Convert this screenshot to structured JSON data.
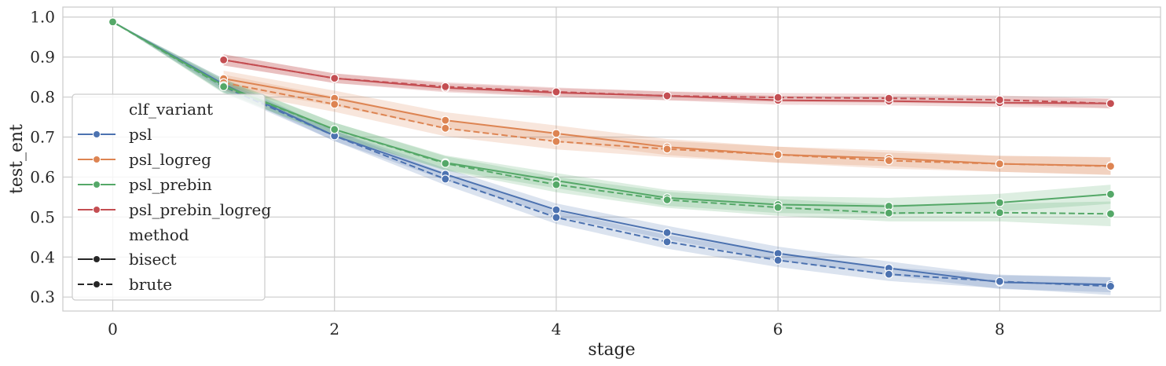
{
  "chart_data": {
    "type": "line",
    "title": "",
    "xlabel": "stage",
    "ylabel": "test_ent",
    "xlim": [
      -0.45,
      9.45
    ],
    "ylim": [
      0.265,
      1.025
    ],
    "xticks": [
      0,
      2,
      4,
      6,
      8
    ],
    "yticks": [
      0.3,
      0.4,
      0.5,
      0.6,
      0.7,
      0.8,
      0.9,
      1.0
    ],
    "xtick_labels": [
      "0",
      "2",
      "4",
      "6",
      "8"
    ],
    "ytick_labels": [
      "0.3",
      "0.4",
      "0.5",
      "0.6",
      "0.7",
      "0.8",
      "0.9",
      "1.0"
    ],
    "grid": true,
    "legend": {
      "placement": "center-left",
      "hue_title": "clf_variant",
      "style_title": "method",
      "hue_entries": [
        "psl",
        "psl_logreg",
        "psl_prebin",
        "psl_prebin_logreg"
      ],
      "style_entries": [
        "bisect",
        "brute"
      ]
    },
    "colors": {
      "psl": "#4c72b0",
      "psl_logreg": "#dd8452",
      "psl_prebin": "#55a868",
      "psl_prebin_logreg": "#c44e52"
    },
    "series": [
      {
        "name": "psl",
        "method": "bisect",
        "x": [
          0,
          1,
          2,
          3,
          4,
          5,
          6,
          7,
          8,
          9
        ],
        "y": [
          0.988,
          0.832,
          0.703,
          0.607,
          0.518,
          0.461,
          0.409,
          0.372,
          0.337,
          0.331
        ],
        "ci_low": [
          0.988,
          0.818,
          0.69,
          0.592,
          0.502,
          0.444,
          0.392,
          0.355,
          0.32,
          0.312
        ],
        "ci_high": [
          0.988,
          0.846,
          0.716,
          0.622,
          0.534,
          0.478,
          0.426,
          0.389,
          0.354,
          0.35
        ]
      },
      {
        "name": "psl",
        "method": "brute",
        "x": [
          0,
          1,
          2,
          3,
          4,
          5,
          6,
          7,
          8,
          9
        ],
        "y": [
          0.988,
          0.826,
          0.703,
          0.595,
          0.499,
          0.438,
          0.392,
          0.357,
          0.339,
          0.327
        ],
        "ci_low": [
          0.988,
          0.812,
          0.69,
          0.58,
          0.483,
          0.421,
          0.375,
          0.34,
          0.322,
          0.305
        ],
        "ci_high": [
          0.988,
          0.84,
          0.716,
          0.61,
          0.515,
          0.455,
          0.409,
          0.374,
          0.356,
          0.349
        ]
      },
      {
        "name": "psl_logreg",
        "method": "bisect",
        "x": [
          1,
          2,
          3,
          4,
          5,
          6,
          7,
          8,
          9
        ],
        "y": [
          0.846,
          0.797,
          0.742,
          0.709,
          0.675,
          0.656,
          0.647,
          0.633,
          0.628
        ],
        "ci_low": [
          0.826,
          0.778,
          0.722,
          0.689,
          0.655,
          0.636,
          0.627,
          0.613,
          0.606
        ],
        "ci_high": [
          0.866,
          0.816,
          0.762,
          0.729,
          0.695,
          0.676,
          0.667,
          0.653,
          0.65
        ]
      },
      {
        "name": "psl_logreg",
        "method": "brute",
        "x": [
          1,
          2,
          3,
          4,
          5,
          6,
          7,
          8,
          9
        ],
        "y": [
          0.836,
          0.782,
          0.722,
          0.689,
          0.67,
          0.656,
          0.641,
          0.633,
          0.627
        ],
        "ci_low": [
          0.816,
          0.763,
          0.702,
          0.669,
          0.65,
          0.636,
          0.621,
          0.613,
          0.605
        ],
        "ci_high": [
          0.856,
          0.801,
          0.742,
          0.709,
          0.69,
          0.676,
          0.661,
          0.653,
          0.649
        ]
      },
      {
        "name": "psl_prebin",
        "method": "bisect",
        "x": [
          0,
          1,
          2,
          3,
          4,
          5,
          6,
          7,
          8,
          9
        ],
        "y": [
          0.988,
          0.829,
          0.719,
          0.636,
          0.591,
          0.548,
          0.531,
          0.527,
          0.536,
          0.557
        ],
        "ci_low": [
          0.988,
          0.812,
          0.702,
          0.618,
          0.572,
          0.528,
          0.51,
          0.506,
          0.514,
          0.533
        ],
        "ci_high": [
          0.988,
          0.846,
          0.736,
          0.654,
          0.61,
          0.568,
          0.552,
          0.548,
          0.558,
          0.581
        ]
      },
      {
        "name": "psl_prebin",
        "method": "brute",
        "x": [
          0,
          1,
          2,
          3,
          4,
          5,
          6,
          7,
          8,
          9
        ],
        "y": [
          0.988,
          0.826,
          0.719,
          0.634,
          0.581,
          0.543,
          0.524,
          0.51,
          0.511,
          0.508
        ],
        "ci_low": [
          0.988,
          0.809,
          0.702,
          0.616,
          0.562,
          0.523,
          0.503,
          0.489,
          0.489,
          0.477
        ],
        "ci_high": [
          0.988,
          0.843,
          0.736,
          0.652,
          0.6,
          0.563,
          0.545,
          0.531,
          0.533,
          0.539
        ]
      },
      {
        "name": "psl_prebin_logreg",
        "method": "bisect",
        "x": [
          1,
          2,
          3,
          4,
          5,
          6,
          7,
          8,
          9
        ],
        "y": [
          0.893,
          0.847,
          0.823,
          0.811,
          0.803,
          0.792,
          0.79,
          0.786,
          0.784
        ],
        "ci_low": [
          0.879,
          0.835,
          0.812,
          0.8,
          0.792,
          0.781,
          0.779,
          0.775,
          0.772
        ],
        "ci_high": [
          0.907,
          0.859,
          0.834,
          0.822,
          0.814,
          0.803,
          0.801,
          0.797,
          0.796
        ]
      },
      {
        "name": "psl_prebin_logreg",
        "method": "brute",
        "x": [
          1,
          2,
          3,
          4,
          5,
          6,
          7,
          8,
          9
        ],
        "y": [
          0.893,
          0.847,
          0.826,
          0.813,
          0.803,
          0.799,
          0.797,
          0.793,
          0.784
        ],
        "ci_low": [
          0.879,
          0.835,
          0.815,
          0.802,
          0.792,
          0.788,
          0.786,
          0.782,
          0.772
        ],
        "ci_high": [
          0.907,
          0.859,
          0.837,
          0.824,
          0.814,
          0.81,
          0.808,
          0.804,
          0.796
        ]
      }
    ]
  }
}
